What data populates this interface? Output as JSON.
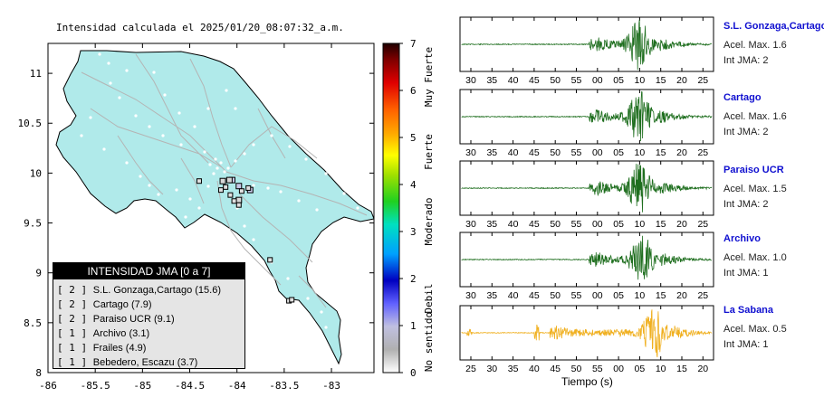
{
  "map": {
    "title": "Intensidad calculada el 2025/01/20_08:07:32_a.m.",
    "x_ticks": [
      "-86",
      "-85.5",
      "-85",
      "-84.5",
      "-84",
      "-83.5",
      "-83"
    ],
    "y_ticks": [
      "11",
      "10.5",
      "10",
      "9.5",
      "9",
      "8.5",
      "8"
    ],
    "legend": {
      "header": "INTENSIDAD JMA [0 a 7]",
      "items": [
        {
          "level": "[ 2 ]",
          "name": "S.L. Gonzaga,Cartago (15.6)"
        },
        {
          "level": "[ 2 ]",
          "name": "Cartago (7.9)"
        },
        {
          "level": "[ 2 ]",
          "name": "Paraiso UCR (9.1)"
        },
        {
          "level": "[ 1 ]",
          "name": "Archivo (3.1)"
        },
        {
          "level": "[ 1 ]",
          "name": "Frailes (4.9)"
        },
        {
          "level": "[ 1 ]",
          "name": "Bebedero, Escazu (3.7)"
        }
      ]
    },
    "colors": {
      "land": "#b0eaea",
      "border": "#000000",
      "roads": "#b4b4b4"
    }
  },
  "colorbar": {
    "ticks": [
      "0",
      "1",
      "2",
      "3",
      "4",
      "5",
      "6",
      "7"
    ],
    "labels": [
      "No sentido",
      "Debil",
      "Moderado",
      "Fuerte",
      "Muy Fuerte"
    ]
  },
  "traces": [
    {
      "station": "S.L. Gonzaga,Cartago",
      "acel": "Acel. Max. 1.6",
      "int": "Int JMA: 2",
      "color": "#1e6e1e",
      "ticks": [
        "30",
        "35",
        "40",
        "45",
        "50",
        "55",
        "00",
        "05",
        "10",
        "15",
        "20",
        "25"
      ]
    },
    {
      "station": "Cartago",
      "acel": "Acel. Max. 1.6",
      "int": "Int JMA: 2",
      "color": "#1e6e1e",
      "ticks": [
        "30",
        "35",
        "40",
        "45",
        "50",
        "55",
        "00",
        "05",
        "10",
        "15",
        "20",
        "25"
      ]
    },
    {
      "station": "Paraiso UCR",
      "acel": "Acel. Max. 1.5",
      "int": "Int JMA: 2",
      "color": "#1e6e1e",
      "ticks": [
        "30",
        "35",
        "40",
        "45",
        "50",
        "55",
        "00",
        "05",
        "10",
        "15",
        "20",
        "25"
      ]
    },
    {
      "station": "Archivo",
      "acel": "Acel. Max. 1.0",
      "int": "Int JMA: 1",
      "color": "#1e6e1e",
      "ticks": [
        "30",
        "35",
        "40",
        "45",
        "50",
        "55",
        "00",
        "05",
        "10",
        "15",
        "20",
        "25"
      ]
    },
    {
      "station": "La Sabana",
      "acel": "Acel. Max. 0.5",
      "int": "Int JMA: 1",
      "color": "#f0b020",
      "ticks": [
        "25",
        "30",
        "35",
        "40",
        "45",
        "50",
        "55",
        "00",
        "05",
        "10",
        "15",
        "20"
      ]
    }
  ],
  "xlabel": "Tiempo (s)",
  "chart_data": [
    {
      "type": "scatter",
      "title": "Intensidad calculada el 2025/01/20_08:07:32_a.m.",
      "xlim": [
        -86,
        -82.55
      ],
      "ylim": [
        8,
        11.3
      ],
      "x_ticks": [
        -86,
        -85.5,
        -85,
        -84.5,
        -84,
        -83.5,
        -83
      ],
      "y_ticks": [
        8,
        8.5,
        9,
        9.5,
        10,
        10.5,
        11
      ],
      "points": [
        {
          "x": -84.05,
          "y": 9.93,
          "intensity": 2
        },
        {
          "x": -83.98,
          "y": 9.87,
          "intensity": 2
        },
        {
          "x": -83.86,
          "y": 9.83,
          "intensity": 2
        },
        {
          "x": -84.08,
          "y": 9.93,
          "intensity": 1
        },
        {
          "x": -83.98,
          "y": 9.73,
          "intensity": 1
        },
        {
          "x": -84.15,
          "y": 9.92,
          "intensity": 1
        }
      ]
    },
    {
      "type": "line",
      "series": [
        {
          "name": "S.L. Gonzaga,Cartago",
          "peak": 1.6,
          "jma": 2
        },
        {
          "name": "Cartago",
          "peak": 1.6,
          "jma": 2
        },
        {
          "name": "Paraiso UCR",
          "peak": 1.5,
          "jma": 2
        },
        {
          "name": "Archivo",
          "peak": 1.0,
          "jma": 1
        },
        {
          "name": "La Sabana",
          "peak": 0.5,
          "jma": 1
        }
      ],
      "xlabel": "Tiempo (s)"
    }
  ]
}
